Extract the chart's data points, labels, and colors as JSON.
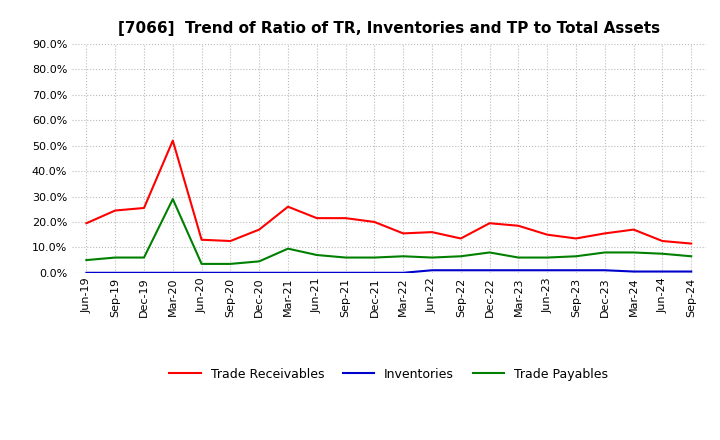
{
  "title": "[7066]  Trend of Ratio of TR, Inventories and TP to Total Assets",
  "labels": [
    "Jun-19",
    "Sep-19",
    "Dec-19",
    "Mar-20",
    "Jun-20",
    "Sep-20",
    "Dec-20",
    "Mar-21",
    "Jun-21",
    "Sep-21",
    "Dec-21",
    "Mar-22",
    "Jun-22",
    "Sep-22",
    "Dec-22",
    "Mar-23",
    "Jun-23",
    "Sep-23",
    "Dec-23",
    "Mar-24",
    "Jun-24",
    "Sep-24"
  ],
  "trade_receivables": [
    19.5,
    24.5,
    25.5,
    52.0,
    13.0,
    12.5,
    17.0,
    26.0,
    21.5,
    21.5,
    20.0,
    15.5,
    16.0,
    13.5,
    19.5,
    18.5,
    15.0,
    13.5,
    15.5,
    17.0,
    12.5,
    11.5
  ],
  "inventories": [
    0.0,
    0.0,
    0.0,
    0.0,
    0.0,
    0.0,
    0.0,
    0.0,
    0.0,
    0.0,
    0.0,
    0.0,
    1.0,
    1.0,
    1.0,
    1.0,
    1.0,
    1.0,
    1.0,
    0.5,
    0.5,
    0.5
  ],
  "trade_payables": [
    5.0,
    6.0,
    6.0,
    29.0,
    3.5,
    3.5,
    4.5,
    9.5,
    7.0,
    6.0,
    6.0,
    6.5,
    6.0,
    6.5,
    8.0,
    6.0,
    6.0,
    6.5,
    8.0,
    8.0,
    7.5,
    6.5
  ],
  "tr_color": "#ff0000",
  "inv_color": "#0000cd",
  "tp_color": "#008000",
  "ylim": [
    0,
    90
  ],
  "yticks": [
    0,
    10,
    20,
    30,
    40,
    50,
    60,
    70,
    80,
    90
  ],
  "legend_labels": [
    "Trade Receivables",
    "Inventories",
    "Trade Payables"
  ],
  "background_color": "#ffffff",
  "plot_bg_color": "#ffffff",
  "grid_color": "#bbbbbb",
  "title_fontsize": 11,
  "tick_fontsize": 8,
  "legend_fontsize": 9
}
